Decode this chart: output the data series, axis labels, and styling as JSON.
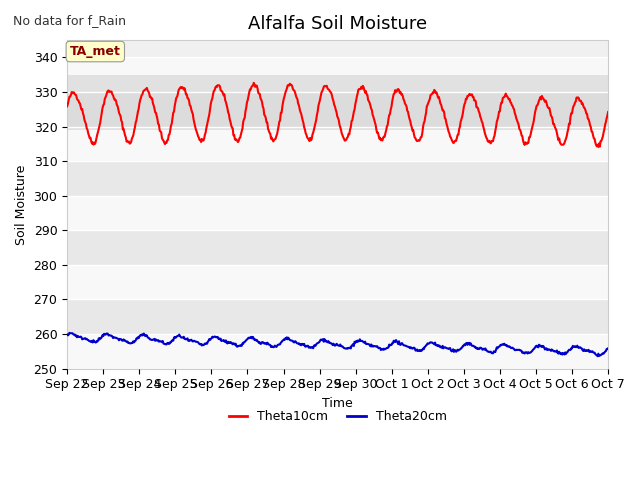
{
  "title": "Alfalfa Soil Moisture",
  "xlabel": "Time",
  "ylabel": "Soil Moisture",
  "top_left_text": "No data for f_Rain",
  "ylim": [
    250,
    345
  ],
  "yticks": [
    250,
    260,
    270,
    280,
    290,
    300,
    310,
    320,
    330,
    340
  ],
  "xtick_labels": [
    "Sep 22",
    "Sep 23",
    "Sep 24",
    "Sep 25",
    "Sep 26",
    "Sep 27",
    "Sep 28",
    "Sep 29",
    "Sep 30",
    "Oct 1",
    "Oct 2",
    "Oct 3",
    "Oct 4",
    "Oct 5",
    "Oct 6",
    "Oct 7"
  ],
  "legend_entries": [
    "Theta10cm",
    "Theta20cm"
  ],
  "line_colors": [
    "#ff0000",
    "#0000cc"
  ],
  "background_color": "#ffffff",
  "plot_bg_color": "#f0f0f0",
  "band_light": "#f8f8f8",
  "band_dark": "#e8e8e8",
  "data_band_color": "#d8d8d8",
  "ta_met_box_color": "#ffffcc",
  "ta_met_text_color": "#880000",
  "title_fontsize": 13,
  "axis_label_fontsize": 9,
  "tick_fontsize": 9
}
